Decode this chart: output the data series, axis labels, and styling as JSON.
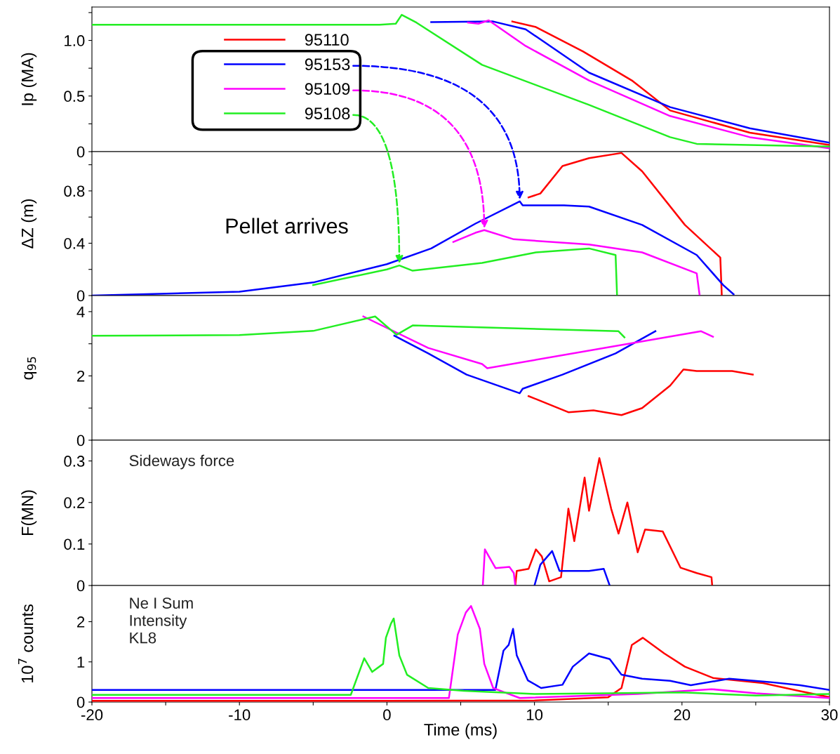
{
  "chart_data": [
    {
      "type": "line",
      "ylabel": "Ip (MA)",
      "xlim": [
        -20,
        30
      ],
      "ylim": [
        0,
        1.3
      ],
      "yticks": [
        0,
        0.5,
        {
          "value": 1.0,
          "label": "1.0"
        },
        {
          "value": 0.25,
          "label": null
        },
        {
          "value": 0.75,
          "label": null
        },
        {
          "value": 1.25,
          "label": null
        }
      ],
      "tick_labels": "y",
      "legend": "top left",
      "grid": false,
      "series": [
        {
          "name": "95110",
          "color": "#ff0000",
          "x": [
            8.5,
            10.1,
            13.3,
            16.6,
            19.2,
            24.6,
            30
          ],
          "values": [
            1.17,
            1.12,
            0.9,
            0.64,
            0.37,
            0.17,
            0.06
          ]
        },
        {
          "name": "95153",
          "color": "#0000ff",
          "x": [
            3,
            7.2,
            9.4,
            13.7,
            19.2,
            24.6,
            30
          ],
          "values": [
            1.165,
            1.17,
            1.1,
            0.71,
            0.4,
            0.21,
            0.08
          ]
        },
        {
          "name": "95109",
          "color": "#ff00ff",
          "x": [
            5.5,
            6.2,
            6.9,
            9.4,
            13.7,
            19.2,
            24.6,
            30
          ],
          "values": [
            1.16,
            1.15,
            1.18,
            0.95,
            0.64,
            0.32,
            0.13,
            0.03
          ]
        },
        {
          "name": "95108",
          "color": "#22ee22",
          "x": [
            -20,
            -10,
            -0.5,
            0.6,
            1.0,
            2.0,
            6.45,
            13.7,
            19.2,
            21.0,
            30
          ],
          "values": [
            1.14,
            1.14,
            1.14,
            1.15,
            1.23,
            1.16,
            0.78,
            0.42,
            0.13,
            0.07,
            0.045
          ]
        }
      ]
    },
    {
      "type": "line",
      "ylabel": "ΔZ (m)",
      "xlim": [
        -20,
        30
      ],
      "ylim": [
        0,
        1.1
      ],
      "yticks": [
        0,
        0.4,
        0.8,
        {
          "value": 0.2,
          "label": null
        },
        {
          "value": 0.6,
          "label": null
        },
        {
          "value": 1.0,
          "label": null
        }
      ],
      "tick_labels": "y",
      "annotations": [
        "Pellet arrives"
      ],
      "series": [
        {
          "color": "#ff0000",
          "x": [
            9.6,
            10.4,
            11.9,
            13.7,
            15.9,
            17.3,
            20.2,
            22.6,
            22.7
          ],
          "values": [
            0.75,
            0.78,
            0.99,
            1.05,
            1.09,
            0.95,
            0.54,
            0.29,
            0
          ]
        },
        {
          "color": "#0000ff",
          "x": [
            -20,
            -10,
            -5,
            0,
            3,
            6,
            9.0,
            9.2,
            12.0,
            13.7,
            17.3,
            21.0,
            22.8,
            23.5
          ],
          "values": [
            0,
            0.03,
            0.1,
            0.24,
            0.36,
            0.55,
            0.72,
            0.69,
            0.69,
            0.68,
            0.54,
            0.31,
            0.08,
            0.01
          ]
        },
        {
          "color": "#ff00ff",
          "x": [
            4.5,
            6,
            6.6,
            8.6,
            13.7,
            17.3,
            21.0,
            21.2
          ],
          "values": [
            0.41,
            0.48,
            0.5,
            0.43,
            0.39,
            0.33,
            0.17,
            0
          ]
        },
        {
          "color": "#22ee22",
          "x": [
            -5,
            0,
            0.84,
            1.74,
            6.45,
            10.1,
            13.7,
            15.5,
            15.6
          ],
          "values": [
            0.08,
            0.2,
            0.23,
            0.19,
            0.25,
            0.33,
            0.36,
            0.31,
            0
          ]
        }
      ]
    },
    {
      "type": "line",
      "ylabel": "q$_{95}$",
      "xlim": [
        -20,
        30
      ],
      "ylim": [
        0,
        4.5
      ],
      "yticks": [
        0,
        2,
        4,
        {
          "value": 1,
          "label": null
        },
        {
          "value": 3,
          "label": null
        }
      ],
      "tick_labels": "y",
      "series": [
        {
          "color": "#ff0000",
          "x": [
            9.6,
            10.1,
            12.3,
            14.0,
            15.9,
            17.3,
            19.2,
            20.1,
            21.0,
            23.4,
            24.8
          ],
          "values": [
            1.37,
            1.28,
            0.87,
            0.93,
            0.78,
            1.0,
            1.7,
            2.2,
            2.15,
            2.15,
            2.04
          ]
        },
        {
          "color": "#0000ff",
          "x": [
            0.5,
            2.8,
            5.4,
            9.0,
            9.2,
            11.9,
            15.5,
            18.2
          ],
          "values": [
            3.25,
            2.7,
            2.04,
            1.46,
            1.6,
            2.04,
            2.7,
            3.39
          ]
        },
        {
          "color": "#ff00ff",
          "x": [
            -1.6,
            2.8,
            6.45,
            6.8,
            21.3,
            22.1
          ],
          "values": [
            3.85,
            2.87,
            2.37,
            2.24,
            3.39,
            3.22
          ]
        },
        {
          "color": "#22ee22",
          "x": [
            -20,
            -10,
            -5,
            -0.8,
            0.65,
            1.74,
            15.7,
            16.1
          ],
          "values": [
            3.25,
            3.27,
            3.4,
            3.85,
            3.28,
            3.57,
            3.39,
            3.2
          ]
        }
      ]
    },
    {
      "type": "line",
      "ylabel": "F(MN)",
      "xlim": [
        -20,
        30
      ],
      "ylim": [
        0,
        0.35
      ],
      "yticks": [
        0,
        0.1,
        0.2,
        0.3
      ],
      "tick_labels": "y",
      "annotations": [
        "Sideways force"
      ],
      "series": [
        {
          "color": "#ff0000",
          "x": [
            8.7,
            8.8,
            9.6,
            10.1,
            10.5,
            11.0,
            11.8,
            12.3,
            12.7,
            13.4,
            13.7,
            14.4,
            15.2,
            15.7,
            16.3,
            17.0,
            17.5,
            18.7,
            19.9,
            21.0,
            22.0,
            22.05
          ],
          "values": [
            0,
            0.035,
            0.04,
            0.087,
            0.07,
            0.01,
            0.02,
            0.185,
            0.107,
            0.26,
            0.18,
            0.307,
            0.185,
            0.125,
            0.2,
            0.08,
            0.135,
            0.13,
            0.043,
            0.03,
            0.02,
            0
          ]
        },
        {
          "color": "#0000ff",
          "x": [
            10.0,
            10.4,
            11.2,
            11.7,
            13.7,
            14.7,
            15.1
          ],
          "values": [
            0,
            0.05,
            0.083,
            0.035,
            0.035,
            0.04,
            0
          ]
        },
        {
          "color": "#ff00ff",
          "x": [
            6.5,
            6.64,
            7.36,
            8.3,
            8.6,
            8.7
          ],
          "values": [
            0,
            0.087,
            0.042,
            0.045,
            0.03,
            0
          ]
        }
      ]
    },
    {
      "type": "line",
      "ylabel": "10$^{7}$ counts",
      "xlabel": "Time (ms)",
      "xlim": [
        -20,
        30
      ],
      "xticks": [
        -20,
        -10,
        0,
        10,
        20,
        30,
        {
          "value": -15,
          "label": null
        },
        {
          "value": -5,
          "label": null
        },
        {
          "value": 5,
          "label": null
        },
        {
          "value": 15,
          "label": null
        },
        {
          "value": 25,
          "label": null
        }
      ],
      "ylim": [
        0,
        2.9
      ],
      "yticks": [
        0,
        1,
        2
      ],
      "annotations": [
        "Ne I Sum\nIntensity\nKL8"
      ],
      "series": [
        {
          "color": "#ff0000",
          "x": [
            -20,
            -10,
            0,
            10,
            15.0,
            15.9,
            16.6,
            17.35,
            18.8,
            20.2,
            22.1,
            25.5,
            27.9,
            30
          ],
          "values": [
            0.03,
            0.03,
            0.03,
            0.04,
            0.12,
            0.35,
            1.42,
            1.6,
            1.21,
            0.88,
            0.6,
            0.47,
            0.28,
            0.12
          ]
        },
        {
          "color": "#0000ff",
          "x": [
            -20,
            -10,
            0,
            7.35,
            7.9,
            8.25,
            8.55,
            8.8,
            9.55,
            10.45,
            11.9,
            12.6,
            13.7,
            15.1,
            15.9,
            17.3,
            19.2,
            20.6,
            23.2,
            25.9,
            28.0,
            30
          ],
          "values": [
            0.3,
            0.3,
            0.3,
            0.3,
            1.28,
            1.42,
            1.82,
            1.16,
            0.54,
            0.35,
            0.43,
            0.88,
            1.21,
            1.07,
            0.68,
            0.58,
            0.53,
            0.42,
            0.58,
            0.5,
            0.42,
            0.3
          ]
        },
        {
          "color": "#ff00ff",
          "x": [
            -20,
            -10,
            0,
            4.2,
            4.8,
            5.35,
            5.7,
            6.3,
            6.6,
            7.2,
            7.9,
            9,
            17,
            22,
            25,
            30
          ],
          "values": [
            0.1,
            0.1,
            0.1,
            0.1,
            1.68,
            2.23,
            2.39,
            1.82,
            0.95,
            0.35,
            0.25,
            0.1,
            0.2,
            0.32,
            0.22,
            0.1
          ]
        },
        {
          "color": "#22ee22",
          "x": [
            -20,
            -10,
            -2.45,
            -1.54,
            -1.0,
            -0.26,
            -0.07,
            0.27,
            0.46,
            0.84,
            1.36,
            2.8,
            5.2,
            10,
            15,
            20,
            25,
            30
          ],
          "values": [
            0.18,
            0.18,
            0.18,
            1.09,
            0.75,
            0.95,
            1.6,
            1.95,
            2.08,
            1.16,
            0.68,
            0.35,
            0.28,
            0.2,
            0.22,
            0.24,
            0.16,
            0.2
          ]
        }
      ]
    }
  ]
}
